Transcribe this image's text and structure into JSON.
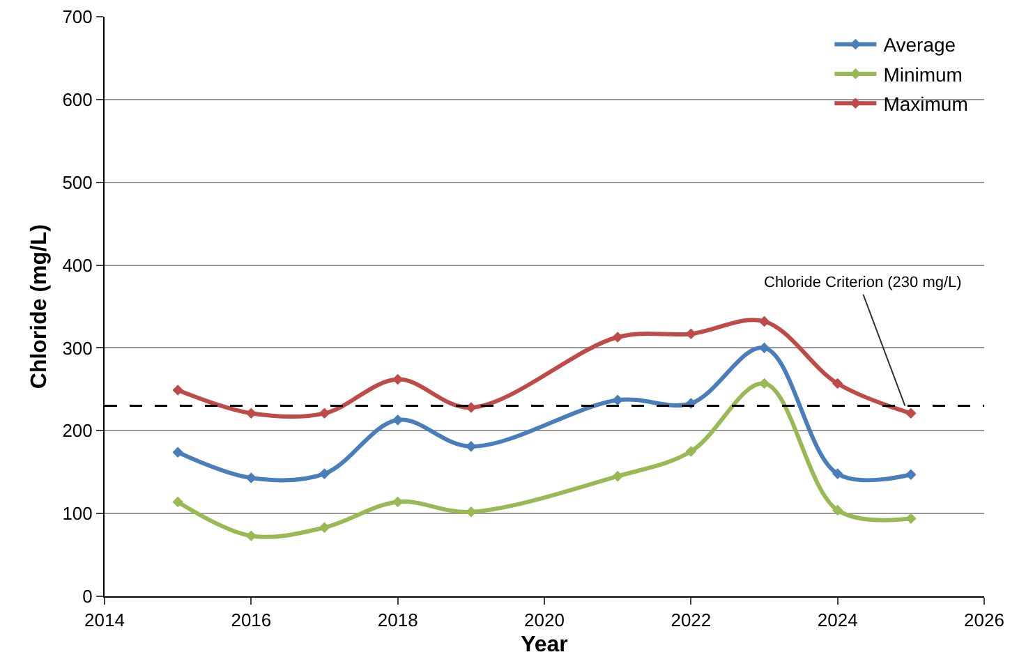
{
  "chart_data": {
    "type": "line",
    "xlabel": "Year",
    "ylabel": "Chloride (mg/L)",
    "x": [
      2015,
      2016,
      2017,
      2018,
      2019,
      2021,
      2022,
      2023,
      2024,
      2025
    ],
    "series": [
      {
        "name": "Average",
        "color": "#4a7ebb",
        "values": [
          174,
          143,
          148,
          213,
          181,
          237,
          233,
          300,
          148,
          147
        ]
      },
      {
        "name": "Minimum",
        "color": "#98b954",
        "values": [
          114,
          73,
          83,
          114,
          102,
          145,
          175,
          257,
          104,
          94
        ]
      },
      {
        "name": "Maximum",
        "color": "#be4b48",
        "values": [
          249,
          221,
          221,
          262,
          228,
          313,
          317,
          332,
          257,
          221
        ]
      }
    ],
    "xlim": [
      2014,
      2026
    ],
    "xticks": [
      2014,
      2016,
      2018,
      2020,
      2022,
      2024,
      2026
    ],
    "ylim": [
      0,
      700
    ],
    "yticks": [
      0,
      100,
      200,
      300,
      400,
      500,
      600,
      700
    ],
    "grid": "y",
    "legend": "top right",
    "marker": "diamond",
    "line_style": "solid",
    "ref_lines": [
      {
        "axis": "y",
        "value": 230,
        "label": "Chloride Criterion (230 mg/L)",
        "color": "#000000",
        "line_style": "dashed"
      }
    ]
  }
}
